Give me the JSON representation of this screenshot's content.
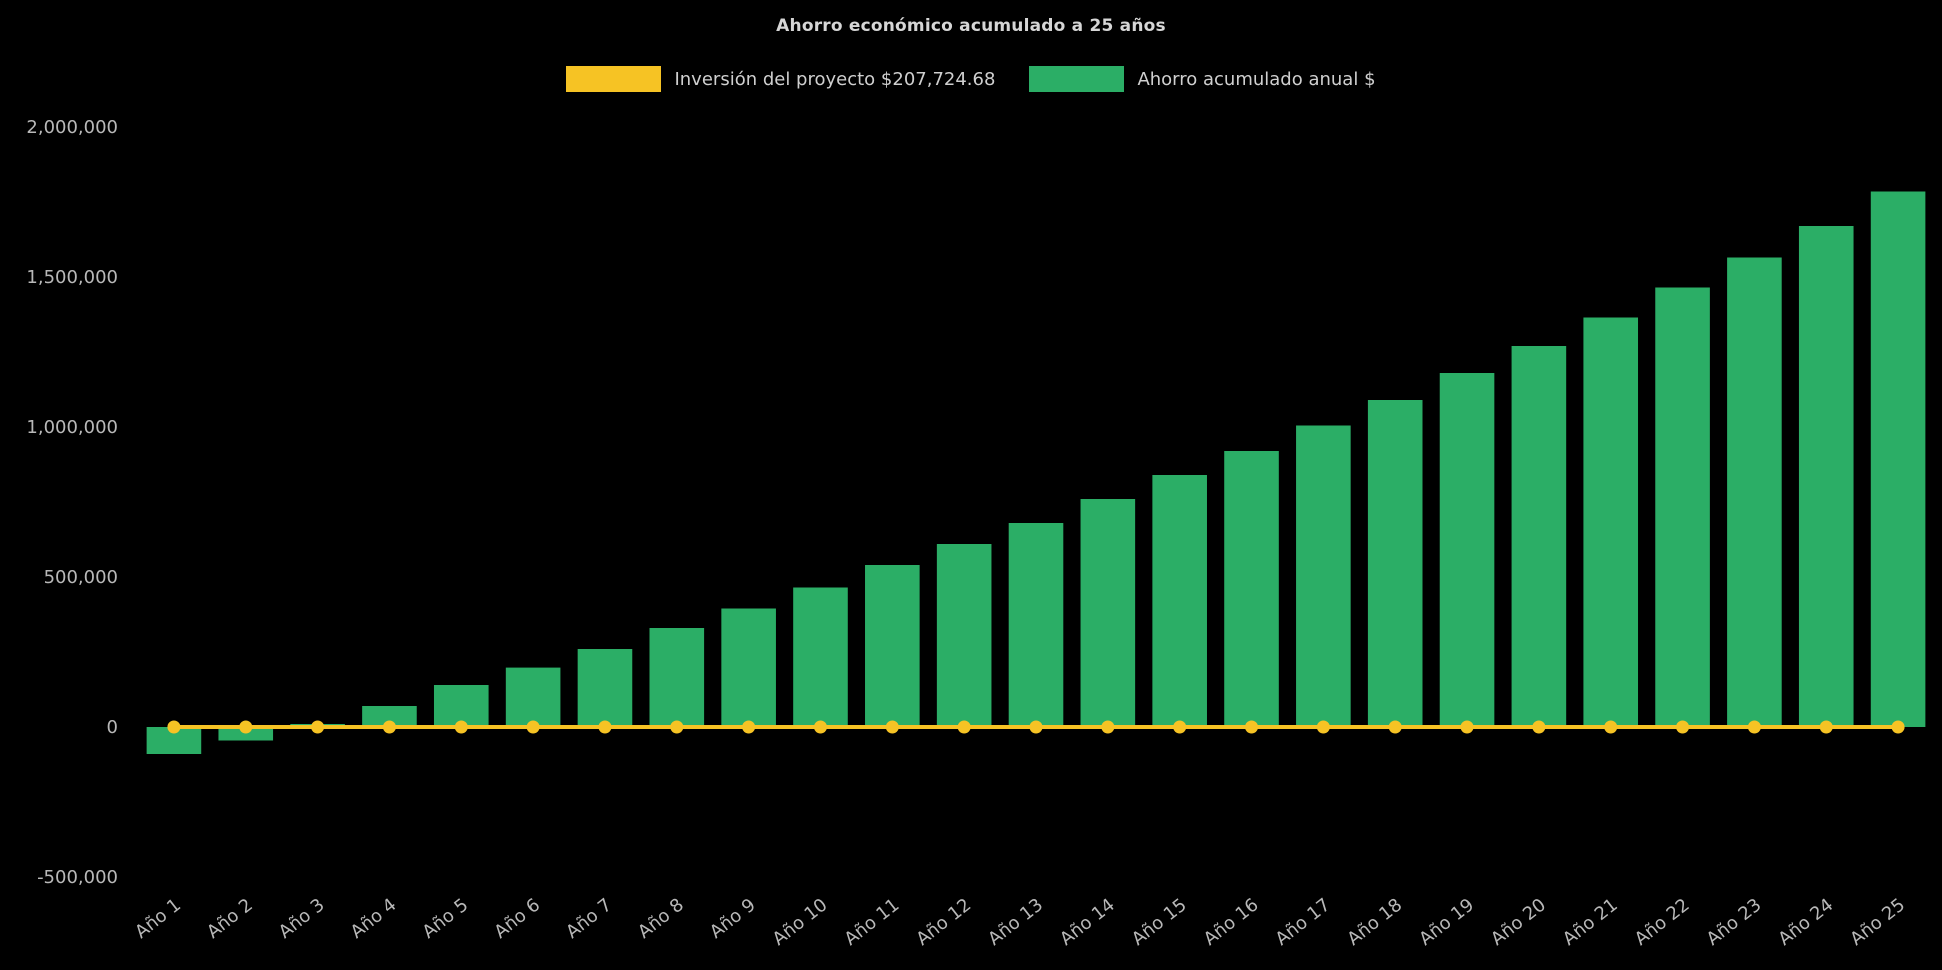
{
  "chart_data": {
    "type": "bar",
    "title": "Ahorro económico acumulado a 25 años",
    "categories": [
      "Año 1",
      "Año 2",
      "Año 3",
      "Año 4",
      "Año 5",
      "Año 6",
      "Año 7",
      "Año 8",
      "Año 9",
      "Año 10",
      "Año 11",
      "Año 12",
      "Año 13",
      "Año 14",
      "Año 15",
      "Año 16",
      "Año 17",
      "Año 18",
      "Año 19",
      "Año 20",
      "Año 21",
      "Año 22",
      "Año 23",
      "Año 24",
      "Año 25"
    ],
    "series": [
      {
        "name": "Inversión del proyecto $207,724.68",
        "type": "line",
        "color": "#f6c324",
        "values": [
          0,
          0,
          0,
          0,
          0,
          0,
          0,
          0,
          0,
          0,
          0,
          0,
          0,
          0,
          0,
          0,
          0,
          0,
          0,
          0,
          0,
          0,
          0,
          0,
          0
        ]
      },
      {
        "name": "Ahorro acumulado anual $",
        "type": "bar",
        "color": "#2bae66",
        "values": [
          -90000,
          -45000,
          10000,
          70000,
          140000,
          198000,
          260000,
          330000,
          395000,
          465000,
          540000,
          610000,
          680000,
          760000,
          840000,
          920000,
          1005000,
          1090000,
          1180000,
          1270000,
          1365000,
          1465000,
          1565000,
          1670000,
          1785000
        ]
      }
    ],
    "ylabel": "",
    "xlabel": "",
    "ylim": [
      -500000,
      2000000
    ],
    "ytick_step": 500000,
    "ytick_labels": [
      "-500,000",
      "0",
      "500,000",
      "1,000,000",
      "1,500,000",
      "2,000,000"
    ],
    "grid": false,
    "legend_position": "top",
    "background_color": "#000000",
    "text_color": "#b8b8b8"
  }
}
